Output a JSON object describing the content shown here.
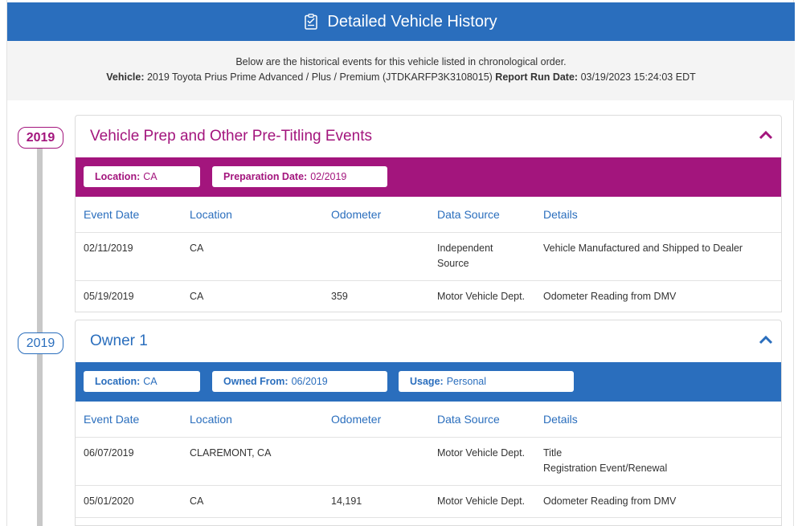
{
  "header": {
    "title": "Detailed Vehicle History",
    "icon": "clipboard-check-icon"
  },
  "intro": {
    "line1": "Below are the historical events for this vehicle listed in chronological order.",
    "vehicle_label": "Vehicle:",
    "vehicle_value": "2019 Toyota Prius Prime Advanced / Plus / Premium (JTDKARFP3K3108015)",
    "report_label": "Report Run Date:",
    "report_value": "03/19/2023 15:24:03 EDT"
  },
  "colors": {
    "magenta": "#a3157d",
    "blue": "#2a6ebd"
  },
  "sections": [
    {
      "year": "2019",
      "title": "Vehicle Prep and Other Pre-Titling Events",
      "pills": [
        {
          "label": "Location:",
          "value": "CA"
        },
        {
          "label": "Preparation Date:",
          "value": "02/2019"
        }
      ],
      "columns": [
        "Event Date",
        "Location",
        "Odometer",
        "Data Source",
        "Details"
      ],
      "rows": [
        {
          "date": "02/11/2019",
          "location": "CA",
          "odometer": "",
          "source_l1": "Independent",
          "source_l2": "Source",
          "details_l1": "Vehicle Manufactured and Shipped to Dealer",
          "details_l2": ""
        },
        {
          "date": "05/19/2019",
          "location": "CA",
          "odometer": "359",
          "source_l1": "Motor Vehicle Dept.",
          "source_l2": "",
          "details_l1": "Odometer Reading from DMV",
          "details_l2": ""
        }
      ]
    },
    {
      "year": "2019",
      "title": "Owner 1",
      "pills": [
        {
          "label": "Location:",
          "value": "CA"
        },
        {
          "label": "Owned From:",
          "value": "06/2019"
        },
        {
          "label": "Usage:",
          "value": "Personal"
        }
      ],
      "columns": [
        "Event Date",
        "Location",
        "Odometer",
        "Data Source",
        "Details"
      ],
      "rows": [
        {
          "date": "06/07/2019",
          "location": "CLAREMONT, CA",
          "odometer": "",
          "source_l1": "Motor Vehicle Dept.",
          "source_l2": "",
          "details_l1": "Title",
          "details_l2": "Registration Event/Renewal"
        },
        {
          "date": "05/01/2020",
          "location": "CA",
          "odometer": "14,191",
          "source_l1": "Motor Vehicle Dept.",
          "source_l2": "",
          "details_l1": "Odometer Reading from DMV",
          "details_l2": ""
        }
      ]
    }
  ]
}
